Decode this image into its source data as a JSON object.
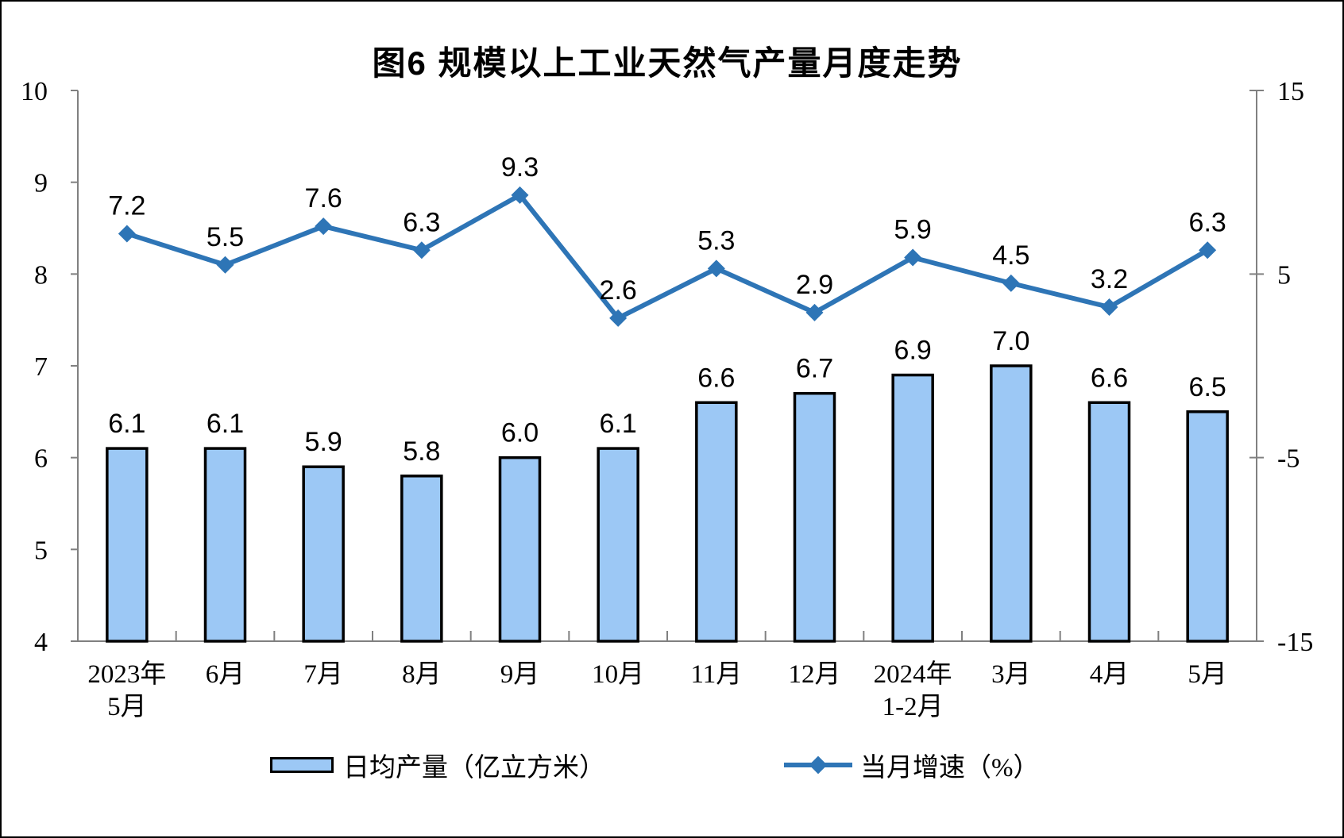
{
  "frame": {
    "background": "#FFFFFF",
    "border_color": "#000000"
  },
  "chart_data": {
    "type": "bar",
    "subtype": "bar+line combo, dual axis",
    "title": "图6 规模以上工业天然气产量月度走势",
    "categories": [
      [
        "2023年",
        "5月"
      ],
      [
        "6月"
      ],
      [
        "7月"
      ],
      [
        "8月"
      ],
      [
        "9月"
      ],
      [
        "10月"
      ],
      [
        "11月"
      ],
      [
        "12月"
      ],
      [
        "2024年",
        "1-2月"
      ],
      [
        "3月"
      ],
      [
        "4月"
      ],
      [
        "5月"
      ]
    ],
    "series": [
      {
        "name": "日均产量（亿立方米）",
        "chart_type": "bar",
        "axis": "left",
        "values": [
          6.1,
          6.1,
          5.9,
          5.8,
          6.0,
          6.1,
          6.6,
          6.7,
          6.9,
          7.0,
          6.6,
          6.5
        ],
        "labels": [
          "6.1",
          "6.1",
          "5.9",
          "5.8",
          "6.0",
          "6.1",
          "6.6",
          "6.7",
          "6.9",
          "7.0",
          "6.6",
          "6.5"
        ],
        "fill_color": "#9CC8F5",
        "border_color": "#000000"
      },
      {
        "name": "当月增速（%）",
        "chart_type": "line",
        "axis": "right",
        "values": [
          7.2,
          5.5,
          7.6,
          6.3,
          9.3,
          2.6,
          5.3,
          2.9,
          5.9,
          4.5,
          3.2,
          6.3
        ],
        "labels": [
          "7.2",
          "5.5",
          "7.6",
          "6.3",
          "9.3",
          "2.6",
          "5.3",
          "2.9",
          "5.9",
          "4.5",
          "3.2",
          "6.3"
        ],
        "line_color": "#2E75B6",
        "marker": "diamond"
      }
    ],
    "left_axis": {
      "min": 4,
      "max": 10,
      "tick_values": [
        4,
        5,
        6,
        7,
        8,
        9,
        10
      ],
      "tick_labels": [
        "4",
        "5",
        "6",
        "7",
        "8",
        "9",
        "10"
      ]
    },
    "right_axis": {
      "min": -15,
      "max": 15,
      "tick_values": [
        -15,
        -5,
        5,
        15
      ],
      "tick_labels": [
        "-15",
        "-5",
        "5",
        "15"
      ]
    },
    "axis_color": "#808080",
    "label_color": "#000000",
    "grid": "off",
    "legend_position": "bottom"
  }
}
